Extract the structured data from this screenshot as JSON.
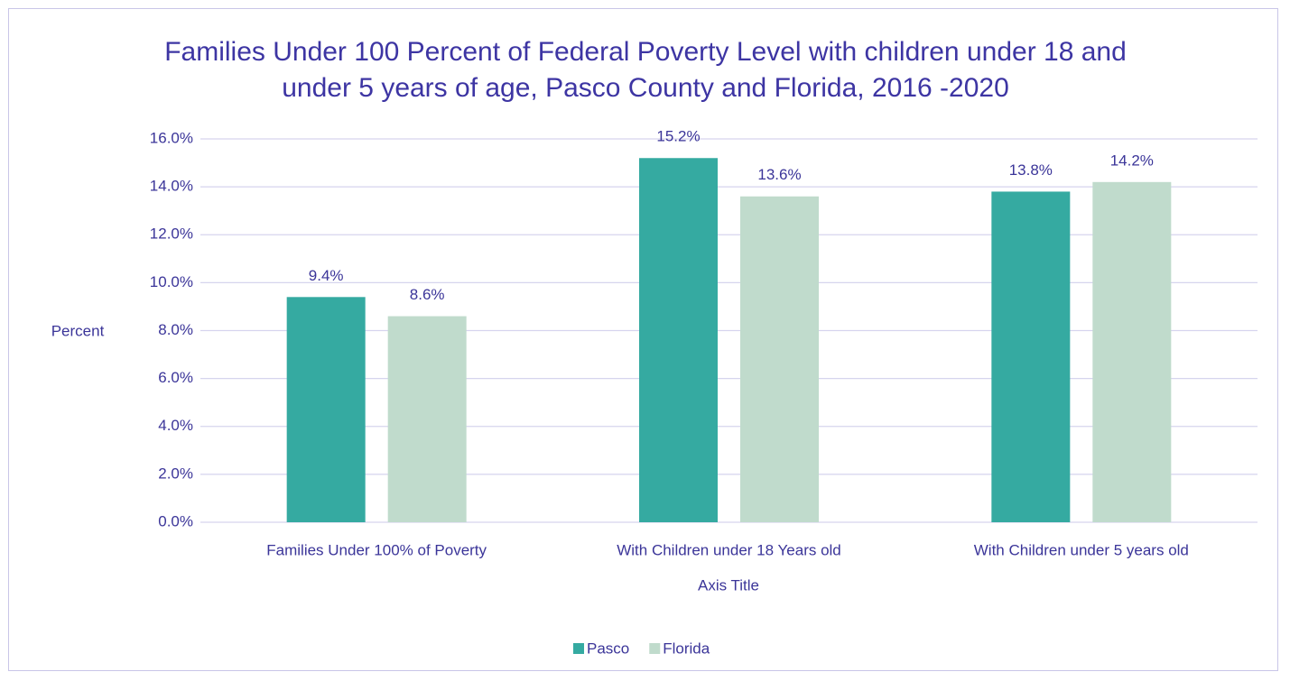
{
  "chart_data": {
    "type": "bar",
    "title": "Families Under 100 Percent of Federal Poverty Level with children under 18 and under 5 years of age, Pasco County and Florida, 2016 -2020",
    "x_label": "Axis Title",
    "y_label": "Percent",
    "categories": [
      "Families Under 100% of Poverty",
      "With Children under 18 Years old",
      "With Children under 5 years old"
    ],
    "series": [
      {
        "name": "Pasco",
        "color": "#35aaa1",
        "values": [
          9.4,
          15.2,
          13.8
        ],
        "value_labels": [
          "9.4%",
          "15.2%",
          "13.8%"
        ]
      },
      {
        "name": "Florida",
        "color": "#c0dbcc",
        "values": [
          8.6,
          13.6,
          14.2
        ],
        "value_labels": [
          "8.6%",
          "13.6%",
          "14.2%"
        ]
      }
    ],
    "ylim": [
      0,
      16
    ],
    "yticks": [
      {
        "value": 0,
        "label": "0.0%"
      },
      {
        "value": 2,
        "label": "2.0%"
      },
      {
        "value": 4,
        "label": "4.0%"
      },
      {
        "value": 6,
        "label": "6.0%"
      },
      {
        "value": 8,
        "label": "8.0%"
      },
      {
        "value": 10,
        "label": "10.0%"
      },
      {
        "value": 12,
        "label": "12.0%"
      },
      {
        "value": 14,
        "label": "14.0%"
      },
      {
        "value": 16,
        "label": "16.0%"
      }
    ],
    "grid": true,
    "legend": "bottom"
  }
}
